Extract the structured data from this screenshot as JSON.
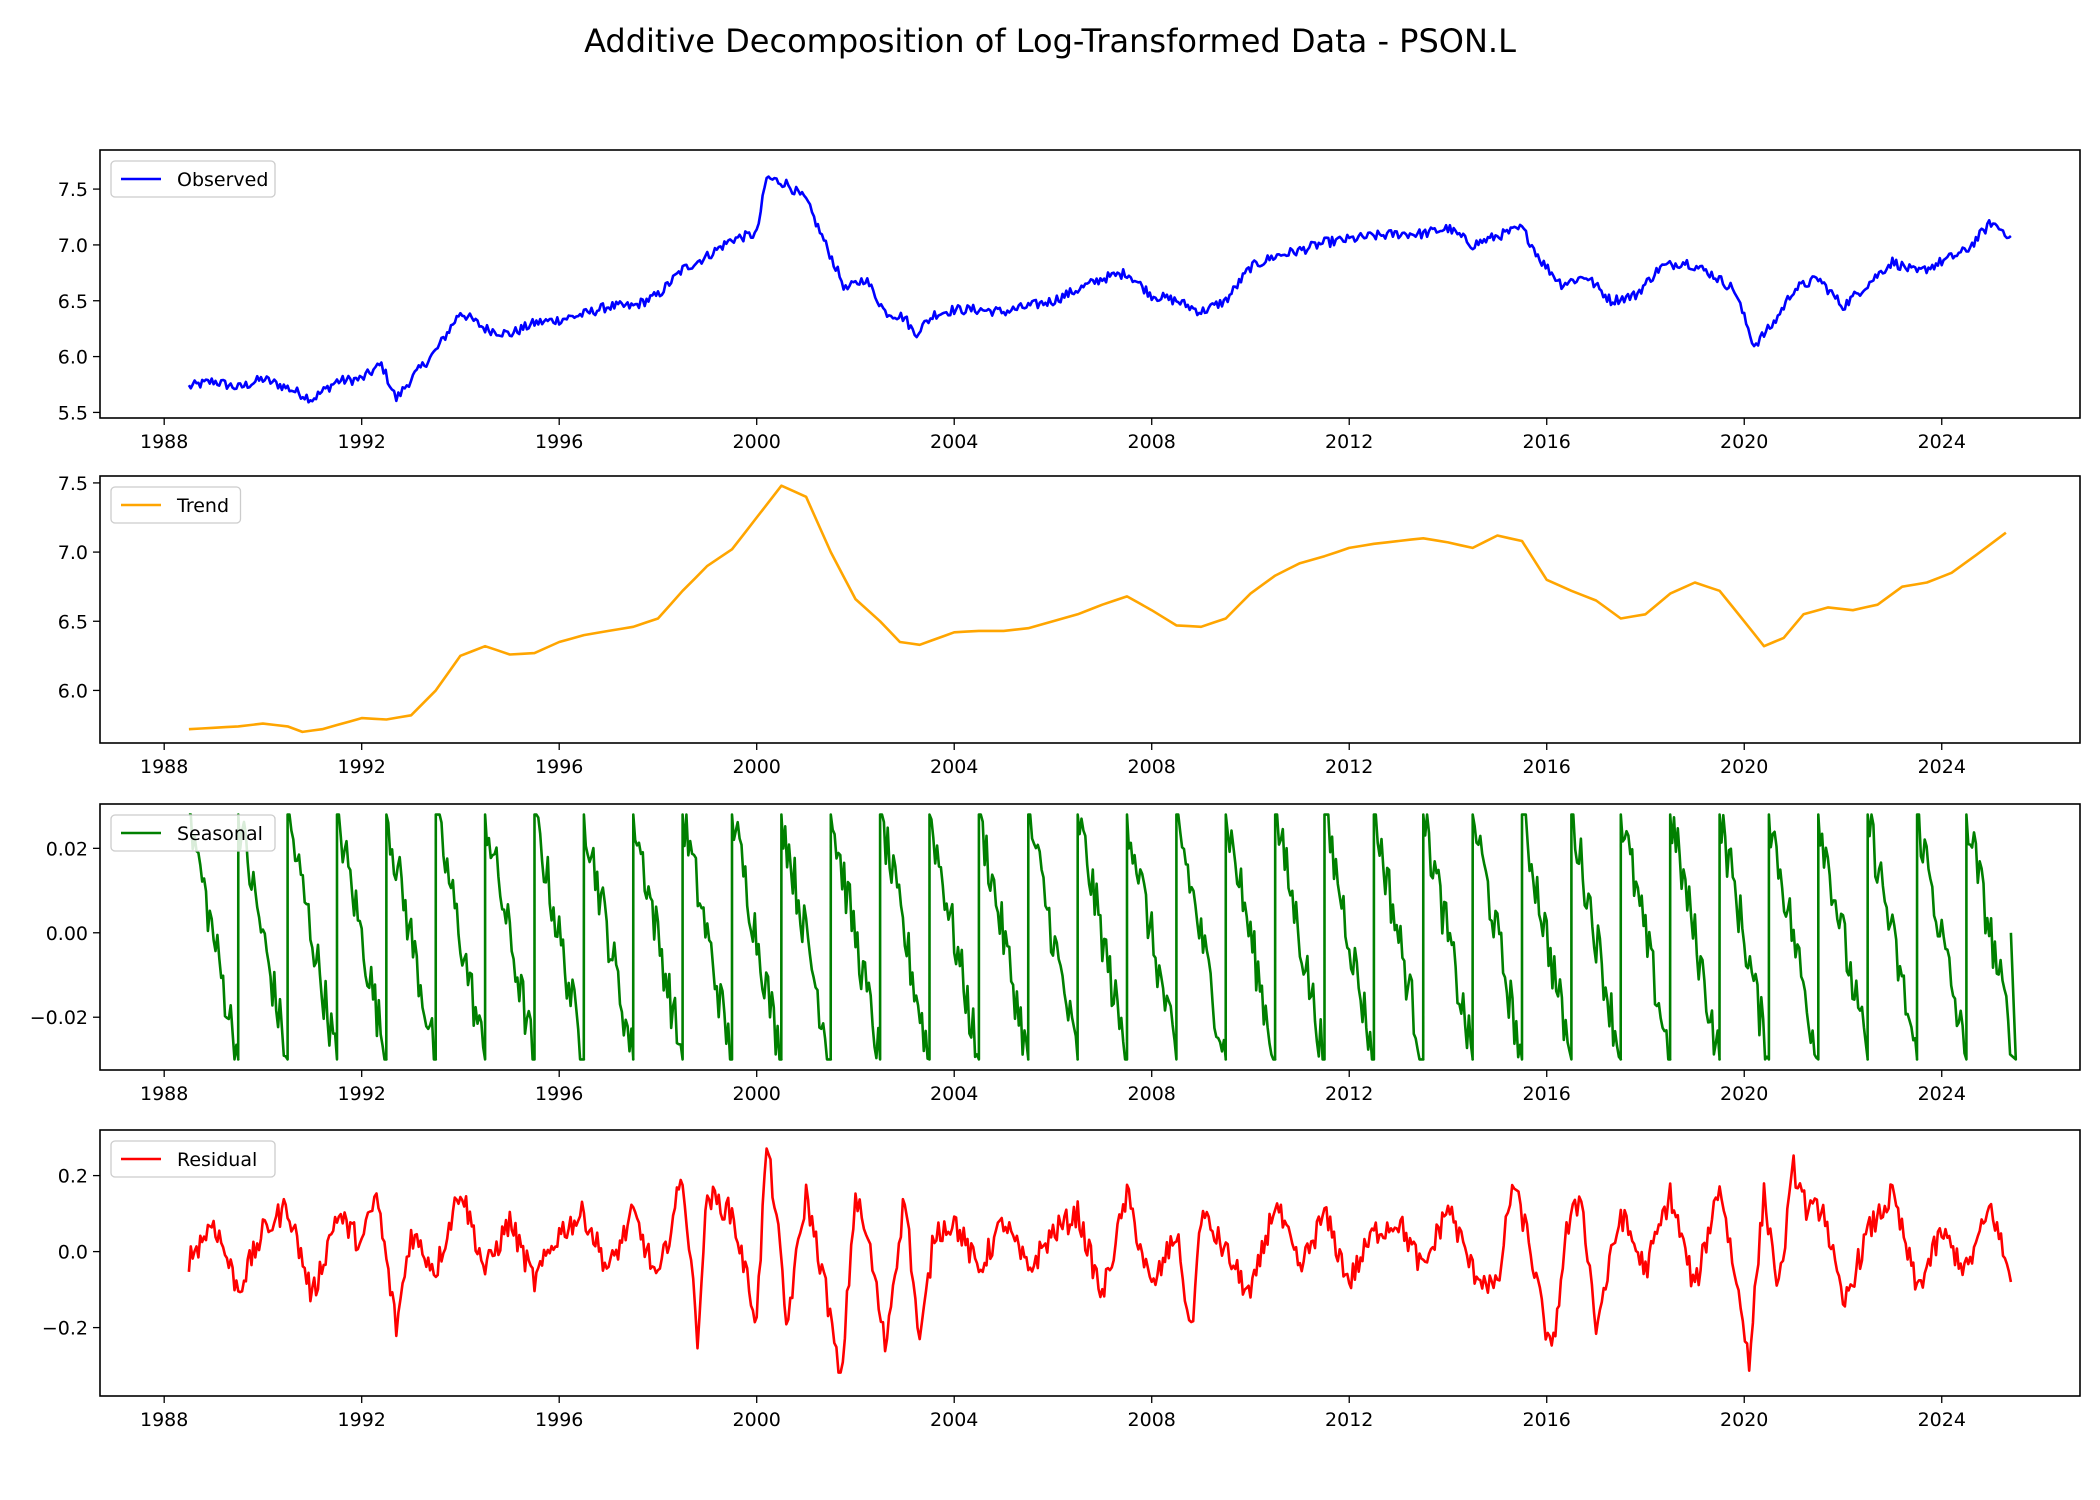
{
  "chart_data": {
    "title": "Additive Decomposition of Log-Transformed Data - PSON.L",
    "type": "line",
    "shared_x": {
      "xlim": [
        1986.7,
        2026.8
      ],
      "ticks": [
        1988,
        1992,
        1996,
        2000,
        2004,
        2008,
        2012,
        2016,
        2020,
        2024
      ],
      "tick_labels": [
        "1988",
        "1992",
        "1996",
        "2000",
        "2004",
        "2008",
        "2012",
        "2016",
        "2020",
        "2024"
      ]
    },
    "panels": [
      {
        "name": "Observed",
        "color": "#0000ff",
        "legend": "upper-left",
        "ylim": [
          5.45,
          7.85
        ],
        "yticks": [
          5.5,
          6.0,
          6.5,
          7.0,
          7.5
        ],
        "ytick_labels": [
          "5.5",
          "6.0",
          "6.5",
          "7.0",
          "7.5"
        ],
        "x": [
          1988.5,
          1989.0,
          1989.5,
          1990.0,
          1990.5,
          1991.0,
          1991.5,
          1992.0,
          1992.4,
          1992.7,
          1993.0,
          1993.5,
          1994.0,
          1994.5,
          1995.0,
          1995.5,
          1996.0,
          1996.5,
          1997.0,
          1997.5,
          1998.0,
          1998.5,
          1999.0,
          1999.5,
          2000.0,
          2000.2,
          2000.6,
          2001.0,
          2001.4,
          2001.8,
          2002.2,
          2002.6,
          2003.0,
          2003.2,
          2003.6,
          2004.0,
          2004.5,
          2005.0,
          2005.5,
          2006.0,
          2006.5,
          2007.0,
          2007.5,
          2008.0,
          2008.5,
          2009.0,
          2009.5,
          2010.0,
          2010.5,
          2011.0,
          2011.5,
          2012.0,
          2012.5,
          2013.0,
          2013.5,
          2014.0,
          2014.5,
          2015.0,
          2015.5,
          2015.9,
          2016.3,
          2016.8,
          2017.3,
          2017.8,
          2018.3,
          2018.8,
          2019.3,
          2019.8,
          2020.2,
          2020.6,
          2021.0,
          2021.5,
          2022.0,
          2022.5,
          2023.0,
          2023.5,
          2024.0,
          2024.5,
          2025.0,
          2025.4
        ],
        "y": [
          5.73,
          5.78,
          5.72,
          5.8,
          5.72,
          5.62,
          5.78,
          5.8,
          5.93,
          5.62,
          5.8,
          6.05,
          6.4,
          6.25,
          6.2,
          6.3,
          6.33,
          6.38,
          6.45,
          6.45,
          6.55,
          6.78,
          6.9,
          7.05,
          7.1,
          7.6,
          7.55,
          7.4,
          7.0,
          6.6,
          6.7,
          6.4,
          6.35,
          6.2,
          6.38,
          6.42,
          6.42,
          6.4,
          6.45,
          6.5,
          6.6,
          6.7,
          6.75,
          6.55,
          6.5,
          6.4,
          6.5,
          6.8,
          6.9,
          6.95,
          7.02,
          7.05,
          7.08,
          7.1,
          7.1,
          7.15,
          7.0,
          7.08,
          7.15,
          6.85,
          6.65,
          6.72,
          6.5,
          6.55,
          6.8,
          6.85,
          6.75,
          6.6,
          6.1,
          6.3,
          6.6,
          6.7,
          6.45,
          6.65,
          6.85,
          6.75,
          6.85,
          6.95,
          7.2,
          7.08
        ]
      },
      {
        "name": "Trend",
        "color": "#ffa500",
        "legend": "upper-left",
        "ylim": [
          5.62,
          7.55
        ],
        "yticks": [
          6.0,
          6.5,
          7.0,
          7.5
        ],
        "ytick_labels": [
          "6.0",
          "6.5",
          "7.0",
          "7.5"
        ],
        "x": [
          1988.5,
          1989.0,
          1989.5,
          1990.0,
          1990.5,
          1990.8,
          1991.2,
          1991.5,
          1992.0,
          1992.5,
          1993.0,
          1993.5,
          1994.0,
          1994.5,
          1995.0,
          1995.5,
          1996.0,
          1996.5,
          1997.0,
          1997.5,
          1998.0,
          1998.5,
          1999.0,
          1999.5,
          2000.0,
          2000.5,
          2001.0,
          2001.5,
          2002.0,
          2002.5,
          2002.9,
          2003.3,
          2004.0,
          2004.5,
          2005.0,
          2005.5,
          2006.0,
          2006.5,
          2007.0,
          2007.5,
          2008.0,
          2008.5,
          2009.0,
          2009.5,
          2010.0,
          2010.5,
          2011.0,
          2011.5,
          2012.0,
          2012.5,
          2013.0,
          2013.5,
          2014.0,
          2014.5,
          2015.0,
          2015.5,
          2016.0,
          2016.5,
          2017.0,
          2017.5,
          2018.0,
          2018.5,
          2019.0,
          2019.5,
          2020.0,
          2020.4,
          2020.8,
          2021.2,
          2021.7,
          2022.2,
          2022.7,
          2023.2,
          2023.7,
          2024.2,
          2024.7,
          2025.3
        ],
        "y": [
          5.72,
          5.73,
          5.74,
          5.76,
          5.74,
          5.7,
          5.72,
          5.75,
          5.8,
          5.79,
          5.82,
          6.0,
          6.25,
          6.32,
          6.26,
          6.27,
          6.35,
          6.4,
          6.43,
          6.46,
          6.52,
          6.72,
          6.9,
          7.02,
          7.25,
          7.48,
          7.4,
          7.0,
          6.66,
          6.5,
          6.35,
          6.33,
          6.42,
          6.43,
          6.43,
          6.45,
          6.5,
          6.55,
          6.62,
          6.68,
          6.58,
          6.47,
          6.46,
          6.52,
          6.7,
          6.83,
          6.92,
          6.97,
          7.03,
          7.06,
          7.08,
          7.1,
          7.07,
          7.03,
          7.12,
          7.08,
          6.8,
          6.72,
          6.65,
          6.52,
          6.55,
          6.7,
          6.78,
          6.72,
          6.5,
          6.32,
          6.38,
          6.55,
          6.6,
          6.58,
          6.62,
          6.75,
          6.78,
          6.85,
          6.98,
          7.14
        ]
      },
      {
        "name": "Seasonal",
        "color": "#008000",
        "legend": "upper-left",
        "ylim": [
          -0.0325,
          0.0305
        ],
        "yticks": [
          -0.02,
          0.0,
          0.02
        ],
        "ytick_labels": [
          "−0.02",
          "0.00",
          "0.02"
        ],
        "period": 1.0,
        "phase_start": 1988.5,
        "x_end": 2025.4,
        "y_max": 0.028,
        "y_min": -0.03
      },
      {
        "name": "Residual",
        "color": "#ff0000",
        "legend": "upper-left",
        "ylim": [
          -0.38,
          0.32
        ],
        "yticks": [
          -0.2,
          0.0,
          0.2
        ],
        "ytick_labels": [
          "−0.2",
          "0.0",
          "0.2"
        ],
        "x": [
          1988.5,
          1989.0,
          1989.5,
          1990.0,
          1990.5,
          1991.0,
          1991.5,
          1992.0,
          1992.3,
          1992.7,
          1993.0,
          1993.5,
          1994.0,
          1994.5,
          1995.0,
          1995.5,
          1996.0,
          1996.5,
          1997.0,
          1997.5,
          1998.0,
          1998.5,
          1998.8,
          1999.0,
          1999.5,
          2000.0,
          2000.2,
          2000.4,
          2000.6,
          2001.0,
          2001.4,
          2001.7,
          2002.0,
          2002.3,
          2002.6,
          2003.0,
          2003.3,
          2003.6,
          2004.0,
          2004.5,
          2005.0,
          2005.5,
          2006.0,
          2006.5,
          2007.0,
          2007.5,
          2008.0,
          2008.5,
          2008.8,
          2009.0,
          2009.5,
          2010.0,
          2010.5,
          2011.0,
          2011.5,
          2012.0,
          2012.5,
          2013.0,
          2013.5,
          2014.0,
          2014.5,
          2015.0,
          2015.3,
          2015.6,
          2015.9,
          2016.1,
          2016.4,
          2016.7,
          2017.0,
          2017.5,
          2018.0,
          2018.5,
          2019.0,
          2019.5,
          2019.8,
          2020.1,
          2020.4,
          2020.7,
          2021.0,
          2021.3,
          2021.6,
          2022.0,
          2022.5,
          2023.0,
          2023.5,
          2024.0,
          2024.5,
          2025.0,
          2025.4
        ],
        "y": [
          -0.02,
          0.08,
          -0.1,
          0.05,
          0.12,
          -0.12,
          0.1,
          0.02,
          0.15,
          -0.2,
          0.05,
          -0.05,
          0.17,
          -0.05,
          0.08,
          -0.08,
          0.05,
          0.1,
          -0.05,
          0.1,
          -0.08,
          0.2,
          -0.22,
          0.15,
          0.1,
          -0.18,
          0.28,
          0.1,
          -0.2,
          0.15,
          -0.1,
          -0.35,
          0.15,
          0.0,
          -0.25,
          0.15,
          -0.25,
          0.05,
          0.08,
          -0.05,
          0.08,
          -0.05,
          0.05,
          0.1,
          -0.12,
          0.15,
          -0.1,
          0.05,
          -0.22,
          0.1,
          0.0,
          -0.12,
          0.13,
          -0.05,
          0.1,
          -0.08,
          0.05,
          0.08,
          -0.05,
          0.12,
          -0.05,
          -0.1,
          0.18,
          0.05,
          -0.15,
          -0.28,
          0.05,
          0.15,
          -0.2,
          0.1,
          -0.05,
          0.15,
          -0.1,
          0.18,
          -0.05,
          -0.28,
          0.15,
          -0.1,
          0.22,
          0.1,
          0.12,
          -0.15,
          0.05,
          0.15,
          -0.1,
          0.05,
          -0.05,
          0.12,
          -0.08
        ]
      }
    ]
  }
}
